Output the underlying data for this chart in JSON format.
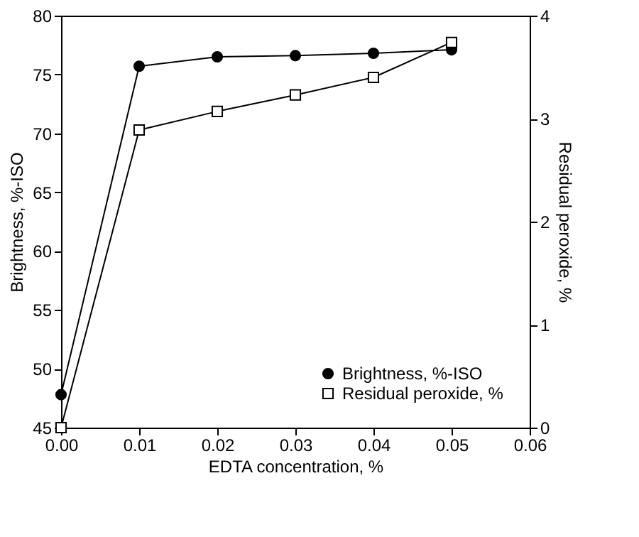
{
  "chart_data": {
    "type": "line",
    "xlabel": "EDTA concentration, %",
    "ylabel": "Brightness, %-ISO",
    "y2label": "Residual peroxide, %",
    "x": [
      0,
      0.01,
      0.02,
      0.03,
      0.04,
      0.05
    ],
    "series": [
      {
        "name": "Brightness, %-ISO",
        "color": "#000000",
        "marker": "circle",
        "values": [
          47.8,
          75.7,
          76.5,
          76.6,
          76.8,
          77.1
        ]
      },
      {
        "name": "Residual peroxide, %",
        "color": "#000000",
        "marker": "square",
        "axis": "y2",
        "values": [
          0,
          2.89,
          3.07,
          3.23,
          3.4,
          3.74
        ]
      }
    ],
    "xlim": [
      0,
      0.06
    ],
    "xticks": [
      {
        "value": 0,
        "label": "0.00"
      },
      {
        "value": 0.01,
        "label": "0.01"
      },
      {
        "value": 0.02,
        "label": "0.02"
      },
      {
        "value": 0.03,
        "label": "0.03"
      },
      {
        "value": 0.04,
        "label": "0.04"
      },
      {
        "value": 0.05,
        "label": "0.05"
      },
      {
        "value": 0.06,
        "label": "0.06"
      }
    ],
    "ylim": [
      45,
      80
    ],
    "yticks": [
      45,
      50,
      55,
      60,
      65,
      70,
      75,
      80
    ],
    "y2lim": [
      0,
      4
    ],
    "y2ticks": [
      0,
      1,
      2,
      3,
      4
    ],
    "grid": false,
    "legend": "bottom right",
    "line_style": "solid"
  }
}
